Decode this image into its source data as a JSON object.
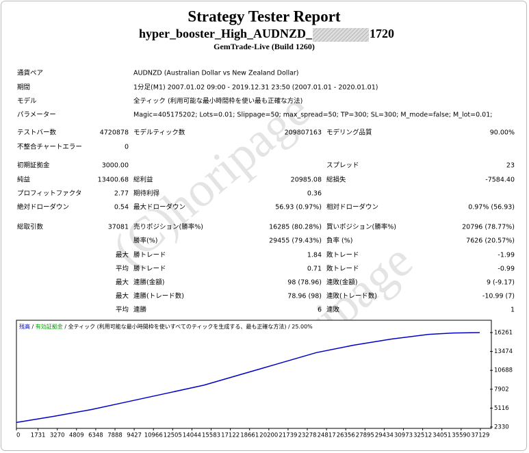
{
  "header": {
    "title": "Strategy Tester Report",
    "subtitle_parts": [
      "hyper_booster_High_AUDNZD_",
      "1720"
    ],
    "build": "GemTrade-Live (Build 1260)"
  },
  "watermark": "(C)horipage",
  "info": [
    {
      "label": "通貨ペア",
      "value": "AUDNZD (Australian Dollar vs New Zealand Dollar)"
    },
    {
      "label": "期間",
      "value": "1分足(M1) 2007.01.02 09:00 - 2019.12.31 23:50 (2007.01.01 - 2020.01.01)"
    },
    {
      "label": "モデル",
      "value": "全ティック (利用可能な最小時間枠を使い最も正確な方法)"
    },
    {
      "label": "パラメーター",
      "value": "Magic=405175202; Lots=0.01; Slippage=50; max_spread=50; TP=300; SL=300; M_mode=false; M_lot=0.01;"
    }
  ],
  "stats": [
    {
      "c1": "テストバー数",
      "v1": "4720878",
      "c2": "モデルティック数",
      "v2": "209807163",
      "c3": "モデリング品質",
      "v3": "90.00%"
    },
    {
      "c1": "不整合チャートエラー",
      "v1": "0"
    },
    {
      "c1": "初期証拠金",
      "v1": "3000.00",
      "c3": "スプレッド",
      "v3": "23"
    },
    {
      "c1": "純益",
      "v1": "13400.68",
      "c2": "総利益",
      "v2": "20985.08",
      "c3": "総損失",
      "v3": "-7584.40"
    },
    {
      "c1": "プロフィットファクタ",
      "v1": "2.77",
      "c2": "期待利得",
      "v2": "0.36"
    },
    {
      "c1": "絶対ドローダウン",
      "v1": "0.54",
      "c2": "最大ドローダウン",
      "v2": "56.93 (0.97%)",
      "c3": "相対ドローダウン",
      "v3": "0.97% (56.93)"
    },
    {
      "c1": "総取引数",
      "v1": "37081",
      "c2": "売りポジション(勝率%)",
      "v2": "16285 (80.28%)",
      "c3": "買いポジション(勝率%)",
      "v3": "20796 (78.77%)"
    },
    {
      "c2": "勝率(%)",
      "v2": "29455 (79.43%)",
      "c3": "負率 (%)",
      "v3": "7626 (20.57%)"
    },
    {
      "v1": "最大",
      "c2": "勝トレード",
      "v2": "1.84",
      "c3": "敗トレード",
      "v3": "-1.99"
    },
    {
      "v1": "平均",
      "c2": "勝トレード",
      "v2": "0.71",
      "c3": "敗トレード",
      "v3": "-0.99"
    },
    {
      "v1": "最大",
      "c2": "連勝(金額)",
      "v2": "98 (78.96)",
      "c3": "連敗(金額)",
      "v3": "9 (-9.17)"
    },
    {
      "v1": "最大",
      "c2": "連勝(トレード数)",
      "v2": "78.96 (98)",
      "c3": "連敗(トレード数)",
      "v3": "-10.99 (7)"
    },
    {
      "v1": "平均",
      "c2": "連勝",
      "v2": "6",
      "c3": "連敗",
      "v3": "1"
    }
  ],
  "chart_data": {
    "type": "line",
    "legend": [
      {
        "text": "残高",
        "color": "#0000c8"
      },
      {
        "text": " / ",
        "color": "#000000"
      },
      {
        "text": "有効証拠金",
        "color": "#00a000"
      },
      {
        "text": " / 全ティック (利用可能な最小時間枠を使いすべてのティックを生成する、最も正確な方法) / 25.00%",
        "color": "#000000"
      }
    ],
    "x": [
      0,
      3000,
      6000,
      9000,
      12000,
      15000,
      18000,
      21000,
      24000,
      27000,
      30000,
      33000,
      35000,
      37081
    ],
    "values": [
      3000,
      3900,
      4900,
      6100,
      7300,
      8500,
      10100,
      11700,
      13300,
      14400,
      15300,
      16000,
      16200,
      16261
    ],
    "color": "#0000c8",
    "xlim": [
      0,
      37900
    ],
    "ylim": [
      2330,
      16261
    ],
    "xticks": [
      0,
      1731,
      3270,
      4809,
      6348,
      7888,
      9427,
      10966,
      12505,
      14044,
      15583,
      17122,
      18661,
      20200,
      21739,
      23278,
      24817,
      26356,
      27895,
      29434,
      30973,
      32512,
      34051,
      35590,
      37129
    ],
    "yticks": [
      2330,
      5116,
      7902,
      10688,
      13474,
      16261
    ]
  }
}
